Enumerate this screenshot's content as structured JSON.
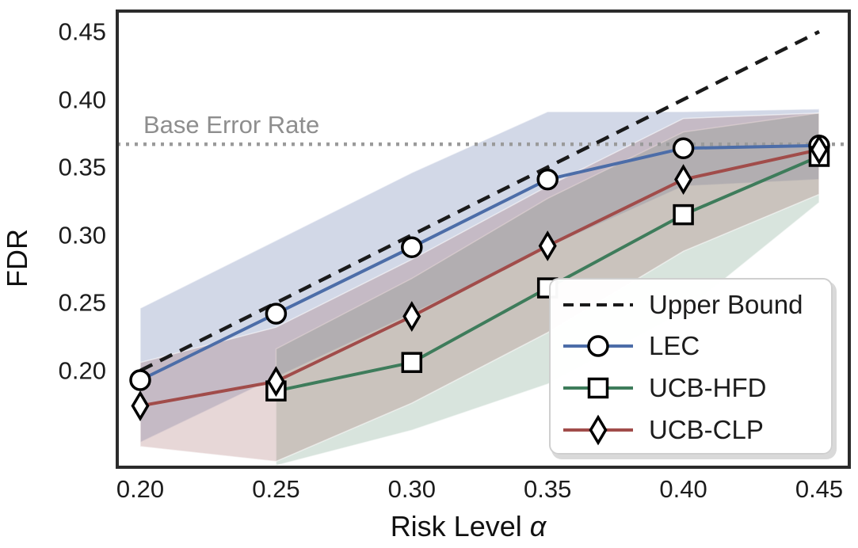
{
  "figure": {
    "background": "#ffffff",
    "axis_color": "#2b2b2b",
    "tick_text_color": "#1c1c1c",
    "annotation_color": "#8e8e8e"
  },
  "chart_data": {
    "type": "line",
    "title": "",
    "xlabel": "Risk Level α",
    "xlabel_prefix": "Risk Level",
    "xlabel_symbol": "α",
    "ylabel": "FDR",
    "xlim": [
      0.196,
      0.456
    ],
    "ylim": [
      0.129,
      0.465
    ],
    "x_tick_labels": [
      "0.20",
      "0.25",
      "0.30",
      "0.35",
      "0.40",
      "0.45"
    ],
    "y_tick_labels": [
      "0.20",
      "0.25",
      "0.30",
      "0.35",
      "0.40",
      "0.45"
    ],
    "x_ticks": [
      0.2,
      0.25,
      0.3,
      0.35,
      0.4,
      0.45
    ],
    "y_ticks": [
      0.2,
      0.25,
      0.3,
      0.35,
      0.4,
      0.45
    ],
    "grid": false,
    "legend_position": "lower right",
    "base_error_line": {
      "label": "Base Error Rate",
      "value": 0.367,
      "color": "#9a9a9a",
      "style": "dotted"
    },
    "series": [
      {
        "name": "Upper Bound",
        "color": "#1a1a1a",
        "style": "dashed",
        "marker": "none",
        "x": [
          0.2,
          0.45
        ],
        "y": [
          0.2,
          0.45
        ]
      },
      {
        "name": "LEC",
        "color": "#4c6da8",
        "style": "solid",
        "marker": "circle",
        "x": [
          0.2,
          0.25,
          0.3,
          0.35,
          0.4,
          0.45
        ],
        "y": [
          0.193,
          0.242,
          0.291,
          0.341,
          0.364,
          0.366
        ],
        "band_upper": [
          0.246,
          0.296,
          0.346,
          0.391,
          0.391,
          0.393
        ],
        "band_lower": [
          0.147,
          0.195,
          0.242,
          0.291,
          0.336,
          0.341
        ],
        "band_color": "#6b7fae",
        "band_opacity": 0.3
      },
      {
        "name": "UCB-HFD",
        "color": "#3e7c5b",
        "style": "solid",
        "marker": "square",
        "x": [
          0.25,
          0.3,
          0.35,
          0.4,
          0.45
        ],
        "y": [
          0.185,
          0.206,
          0.261,
          0.315,
          0.358
        ],
        "band_upper": [
          0.216,
          0.268,
          0.327,
          0.376,
          0.39
        ],
        "band_lower": [
          0.13,
          0.156,
          0.19,
          0.243,
          0.324
        ],
        "band_color": "#7fa58d",
        "band_opacity": 0.3
      },
      {
        "name": "UCB-CLP",
        "color": "#a14c4a",
        "style": "solid",
        "marker": "diamond",
        "x": [
          0.2,
          0.25,
          0.3,
          0.35,
          0.4,
          0.45
        ],
        "y": [
          0.174,
          0.192,
          0.24,
          0.292,
          0.341,
          0.363
        ],
        "band_upper": [
          0.206,
          0.232,
          0.282,
          0.336,
          0.386,
          0.39
        ],
        "band_lower": [
          0.144,
          0.133,
          0.176,
          0.228,
          0.288,
          0.33
        ],
        "band_color": "#a1605e",
        "band_opacity": 0.25
      }
    ]
  }
}
